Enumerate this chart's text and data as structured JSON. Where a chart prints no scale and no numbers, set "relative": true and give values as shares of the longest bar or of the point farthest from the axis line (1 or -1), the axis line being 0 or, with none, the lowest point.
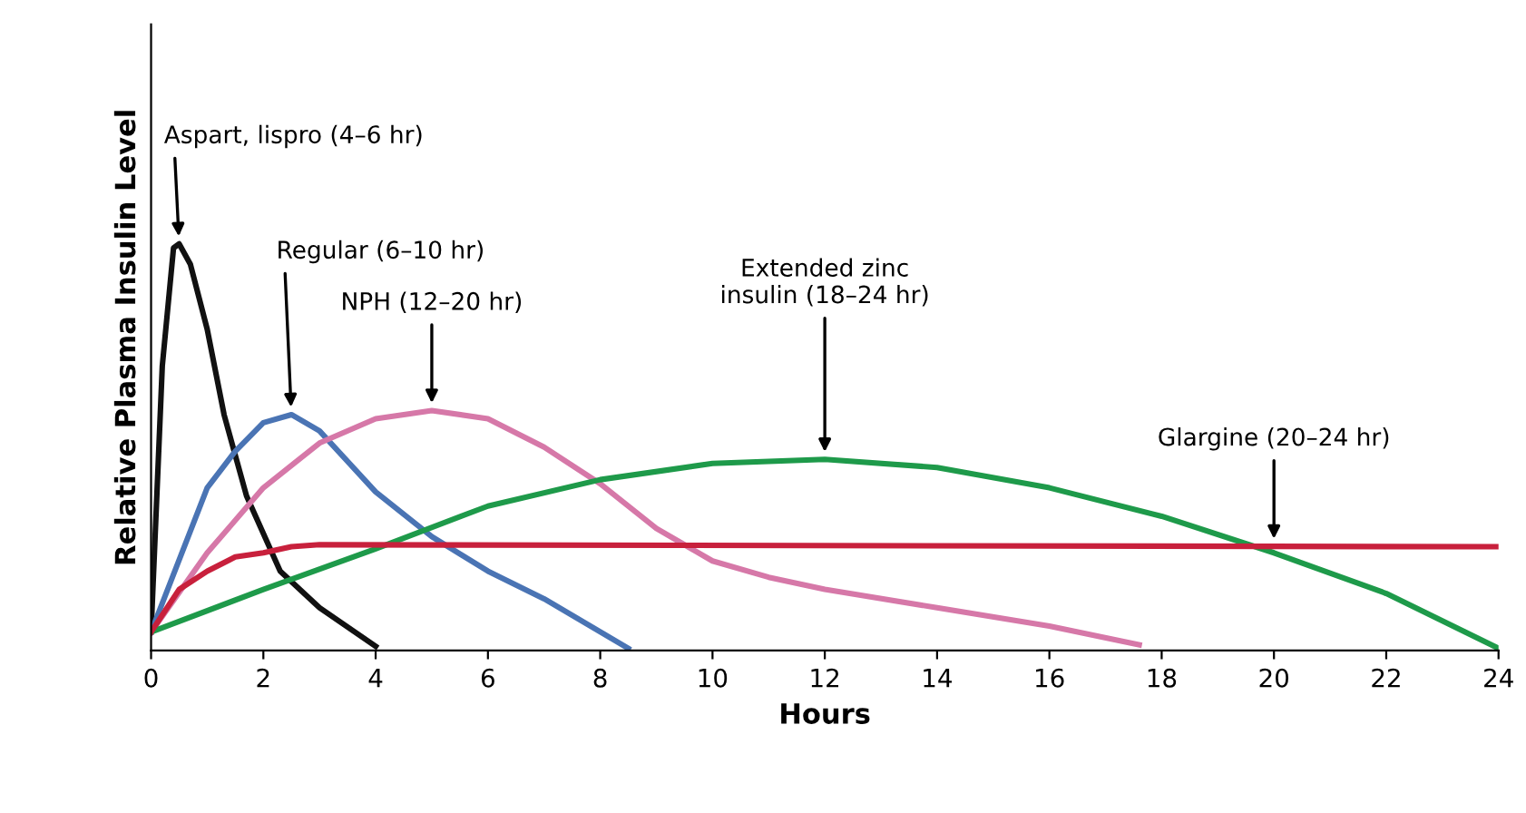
{
  "chart_data": {
    "type": "line",
    "relative": true,
    "xlabel": "Hours",
    "ylabel": "Relative Plasma Insulin Level",
    "xlim": [
      0,
      24
    ],
    "xticks": [
      0,
      2,
      4,
      6,
      8,
      10,
      12,
      14,
      16,
      18,
      20,
      22,
      24
    ],
    "grid": false,
    "legend": false,
    "marker": "none",
    "line_style": "solid",
    "series": [
      {
        "color": "#111111",
        "x": [
          0,
          0.2,
          0.4,
          0.5,
          0.7,
          1.0,
          1.3,
          1.7,
          2.3,
          3,
          4
        ],
        "values": [
          0.045,
          0.7,
          0.99,
          1.0,
          0.95,
          0.79,
          0.58,
          0.38,
          0.195,
          0.105,
          0.01
        ]
      },
      {
        "color": "#4a74b4",
        "x": [
          0,
          1,
          1.5,
          2,
          2.5,
          3,
          4,
          5,
          6,
          7,
          8.5
        ],
        "values": [
          0.045,
          0.4,
          0.49,
          0.56,
          0.58,
          0.54,
          0.39,
          0.28,
          0.195,
          0.127,
          0.005
        ]
      },
      {
        "color": "#d678a8",
        "x": [
          0,
          1,
          2,
          3,
          4,
          5,
          6,
          7,
          8,
          9,
          10,
          11,
          12,
          14,
          16,
          17.6
        ],
        "values": [
          0.045,
          0.24,
          0.4,
          0.51,
          0.57,
          0.59,
          0.57,
          0.5,
          0.41,
          0.3,
          0.22,
          0.18,
          0.15,
          0.105,
          0.06,
          0.014
        ]
      },
      {
        "color": "#1e9a4a",
        "x": [
          0,
          2,
          4,
          6,
          8,
          10,
          12,
          14,
          16,
          18,
          20,
          22,
          24
        ],
        "values": [
          0.045,
          0.15,
          0.25,
          0.355,
          0.42,
          0.46,
          0.47,
          0.45,
          0.4,
          0.33,
          0.24,
          0.14,
          0.005
        ]
      },
      {
        "color": "#c8203c",
        "x": [
          0,
          0.5,
          1,
          1.5,
          2,
          2.5,
          3,
          24
        ],
        "values": [
          0.045,
          0.15,
          0.195,
          0.23,
          0.24,
          0.255,
          0.26,
          0.255
        ]
      }
    ],
    "annotations": [
      {
        "text": "Aspart, lispro (4–6 hr)",
        "x": 0.5,
        "y": 1.0
      },
      {
        "text": "Regular (6–10 hr)",
        "x": 2.5,
        "y": 0.58
      },
      {
        "text": "NPH (12–20 hr)",
        "x": 5,
        "y": 0.59
      },
      {
        "text": "Extended zinc\ninsulin (18–24 hr)",
        "x": 12,
        "y": 0.47
      },
      {
        "text": "Glargine (20–24 hr)",
        "x": 20,
        "y": 0.256
      }
    ]
  }
}
